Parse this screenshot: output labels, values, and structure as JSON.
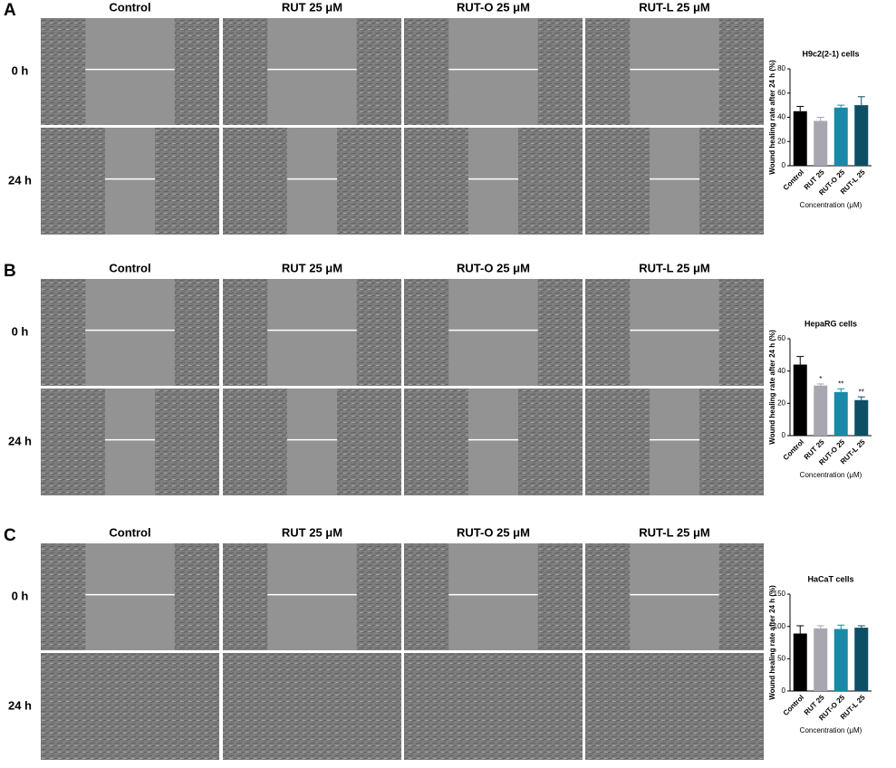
{
  "panels": [
    {
      "label": "A",
      "columns": [
        "Control",
        "RUT 25 μM",
        "RUT-O 25 μM",
        "RUT-L 25 μM"
      ],
      "rows": [
        "0 h",
        "24 h"
      ]
    },
    {
      "label": "B",
      "columns": [
        "Control",
        "RUT 25 μM",
        "RUT-O 25 μM",
        "RUT-L 25 μM"
      ],
      "rows": [
        "0 h",
        "24 h"
      ]
    },
    {
      "label": "C",
      "columns": [
        "Control",
        "RUT 25 μM",
        "RUT-O 25 μM",
        "RUT-L 25 μM"
      ],
      "rows": [
        "0 h",
        "24 h"
      ]
    }
  ],
  "chart_data": [
    {
      "type": "bar",
      "title": "H9c2(2-1) cells",
      "y_label": "Wound healing rate after 24 h (%)",
      "x_label": "Concentration (μM)",
      "categories": [
        "Control",
        "RUT 25",
        "RUT-O 25",
        "RUT-L 25"
      ],
      "values": [
        45,
        37,
        48,
        50
      ],
      "errors": [
        4,
        3,
        2,
        7
      ],
      "colors": [
        "#000000",
        "#a7a7b2",
        "#1a8aa8",
        "#0d4f66"
      ],
      "ylim": [
        0,
        80
      ],
      "yticks": [
        0,
        20,
        40,
        60,
        80
      ]
    },
    {
      "type": "bar",
      "title": "HepaRG cells",
      "y_label": "Wound healing rate after 24 h (%)",
      "x_label": "Concentration (μM)",
      "categories": [
        "Control",
        "RUT 25",
        "RUT-O 25",
        "RUT-L 25"
      ],
      "values": [
        44,
        31,
        27,
        22
      ],
      "errors": [
        5,
        1,
        2,
        2
      ],
      "significance": [
        null,
        "*",
        "**",
        "**"
      ],
      "colors": [
        "#000000",
        "#a7a7b2",
        "#1a8aa8",
        "#0d4f66"
      ],
      "ylim": [
        0,
        60
      ],
      "yticks": [
        0,
        20,
        40,
        60
      ]
    },
    {
      "type": "bar",
      "title": "HaCaT cells",
      "y_label": "Wound healing rate after 24 h (%)",
      "x_label": "Concentration (μM)",
      "categories": [
        "Control",
        "RUT 25",
        "RUT-O 25",
        "RUT-L 25"
      ],
      "values": [
        89,
        97,
        96,
        98
      ],
      "errors": [
        12,
        4,
        6,
        3
      ],
      "colors": [
        "#000000",
        "#a7a7b2",
        "#1a8aa8",
        "#0d4f66"
      ],
      "ylim": [
        0,
        150
      ],
      "yticks": [
        0,
        50,
        100,
        150
      ]
    }
  ]
}
